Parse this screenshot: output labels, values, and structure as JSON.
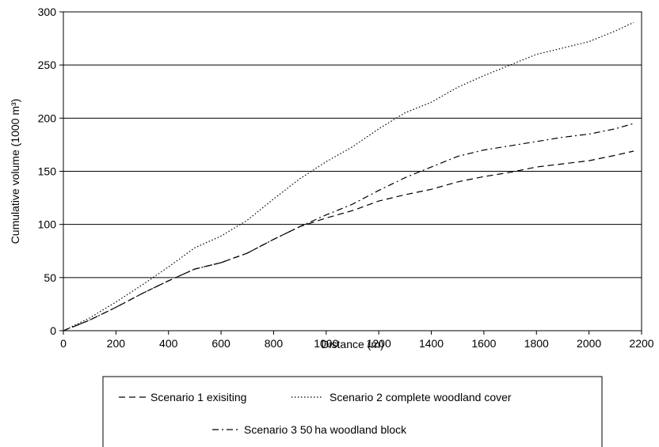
{
  "chart_data": {
    "type": "line",
    "xlabel": "Distance (m)",
    "ylabel": "Cumulative volume (1000 m³)",
    "xlim": [
      0,
      2200
    ],
    "ylim": [
      0,
      300
    ],
    "xticks": [
      0,
      200,
      400,
      600,
      800,
      1000,
      1200,
      1400,
      1600,
      1800,
      2000,
      2200
    ],
    "yticks": [
      0,
      50,
      100,
      150,
      200,
      250,
      300
    ],
    "grid": "horizontal",
    "legend_position": "bottom",
    "series": [
      {
        "name": "Scenario 1 exisiting",
        "style": "dashed",
        "x": [
          0,
          100,
          200,
          300,
          400,
          500,
          600,
          700,
          800,
          900,
          1000,
          1100,
          1200,
          1300,
          1400,
          1500,
          1600,
          1700,
          1800,
          1900,
          2000,
          2100,
          2170
        ],
        "y": [
          0,
          10,
          22,
          35,
          47,
          58,
          64,
          73,
          86,
          98,
          106,
          113,
          122,
          128,
          133,
          140,
          145,
          149,
          154,
          157,
          160,
          165,
          169
        ]
      },
      {
        "name": "Scenario 2 complete woodland cover",
        "style": "dotted",
        "x": [
          0,
          100,
          200,
          300,
          400,
          500,
          600,
          700,
          800,
          900,
          1000,
          1100,
          1200,
          1300,
          1400,
          1500,
          1600,
          1700,
          1800,
          1900,
          2000,
          2100,
          2170
        ],
        "y": [
          0,
          12,
          27,
          43,
          60,
          78,
          89,
          104,
          124,
          143,
          159,
          173,
          190,
          205,
          215,
          229,
          240,
          250,
          260,
          266,
          272,
          282,
          290
        ]
      },
      {
        "name": "Scenario 3 50 ha woodland block",
        "style": "dashdot",
        "x": [
          0,
          100,
          200,
          300,
          400,
          500,
          600,
          700,
          800,
          900,
          1000,
          1100,
          1200,
          1300,
          1400,
          1500,
          1600,
          1700,
          1800,
          1900,
          2000,
          2100,
          2170
        ],
        "y": [
          0,
          10,
          22,
          35,
          47,
          58,
          64,
          73,
          86,
          98,
          109,
          119,
          132,
          144,
          154,
          164,
          170,
          174,
          178,
          182,
          185,
          190,
          195
        ]
      }
    ]
  }
}
